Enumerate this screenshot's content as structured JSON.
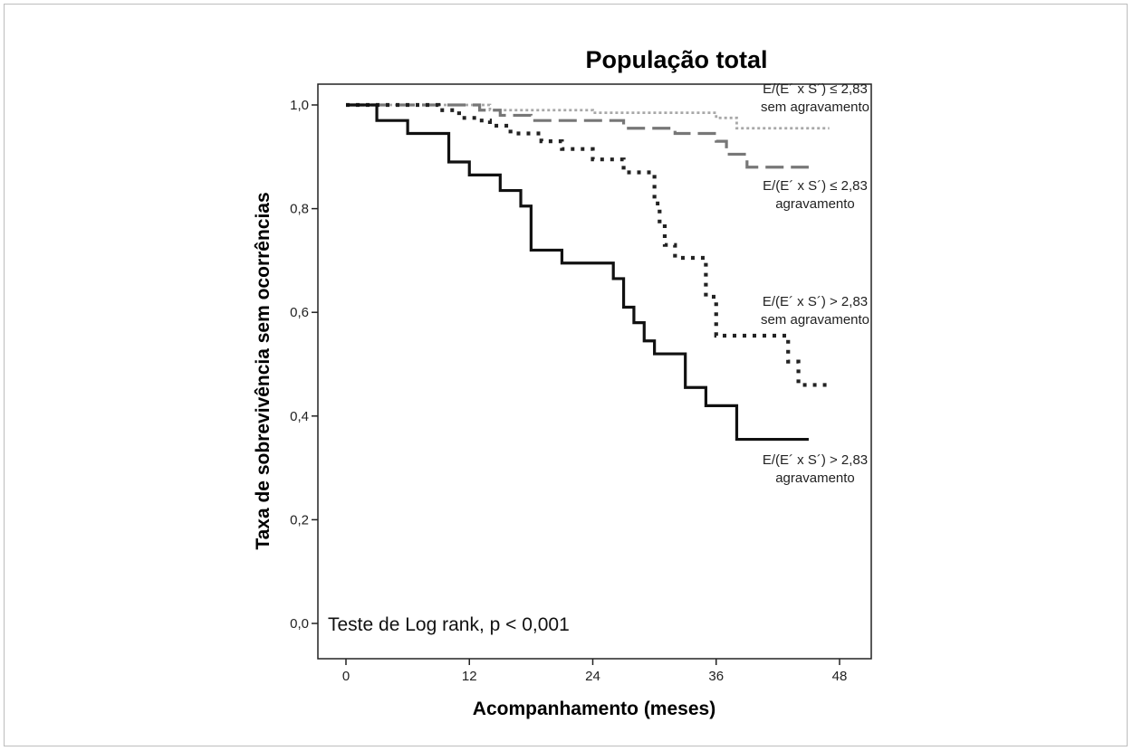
{
  "chart_data": {
    "type": "line",
    "title": "População total",
    "xlabel": "Acompanhamento (meses)",
    "ylabel": "Taxa de sobrevivência sem ocorrências",
    "xlim": [
      0,
      48
    ],
    "ylim": [
      0,
      1
    ],
    "x_ticks": [
      "0",
      "12",
      "24",
      "36",
      "48"
    ],
    "y_ticks": [
      "0,0",
      "0,2",
      "0,4",
      "0,6",
      "0,8",
      "1,0"
    ],
    "annotation": "Teste de Log rank, p < 0,001",
    "grid": false,
    "series": [
      {
        "label_lines": [
          "E/(E´ x S´) ≤ 2,83",
          "sem agravamento"
        ],
        "color": "#a8a8a8",
        "style": "dotted",
        "x": [
          0,
          14,
          24,
          36,
          38,
          47
        ],
        "y": [
          1.0,
          0.99,
          0.985,
          0.975,
          0.955,
          0.955
        ]
      },
      {
        "label_lines": [
          "E/(E´ x S´) ≤ 2,83",
          "agravamento"
        ],
        "color": "#777777",
        "style": "dashed",
        "x": [
          0,
          13,
          15,
          18,
          27,
          32,
          36,
          37,
          39,
          45
        ],
        "y": [
          1.0,
          0.99,
          0.98,
          0.97,
          0.955,
          0.945,
          0.93,
          0.905,
          0.88,
          0.88
        ]
      },
      {
        "label_lines": [
          "E/(E´ x S´) > 2,83",
          "sem agravamento"
        ],
        "color": "#222222",
        "style": "dotted-heavy",
        "x": [
          0,
          9,
          11,
          13,
          14,
          16,
          19,
          21,
          24,
          27,
          30,
          30.5,
          31,
          32,
          35,
          36,
          43,
          44,
          47
        ],
        "y": [
          1.0,
          0.99,
          0.975,
          0.97,
          0.96,
          0.945,
          0.93,
          0.915,
          0.895,
          0.87,
          0.81,
          0.77,
          0.73,
          0.705,
          0.63,
          0.555,
          0.505,
          0.46,
          0.46
        ]
      },
      {
        "label_lines": [
          "E/(E´ x S´) > 2,83",
          "agravamento"
        ],
        "color": "#111111",
        "style": "solid",
        "x": [
          0,
          3,
          6,
          10,
          12,
          15,
          17,
          18,
          21,
          26,
          27,
          28,
          29,
          30,
          33,
          35,
          38,
          45
        ],
        "y": [
          1.0,
          0.97,
          0.945,
          0.89,
          0.865,
          0.835,
          0.805,
          0.72,
          0.695,
          0.665,
          0.61,
          0.58,
          0.545,
          0.52,
          0.455,
          0.42,
          0.355,
          0.355
        ]
      }
    ]
  }
}
